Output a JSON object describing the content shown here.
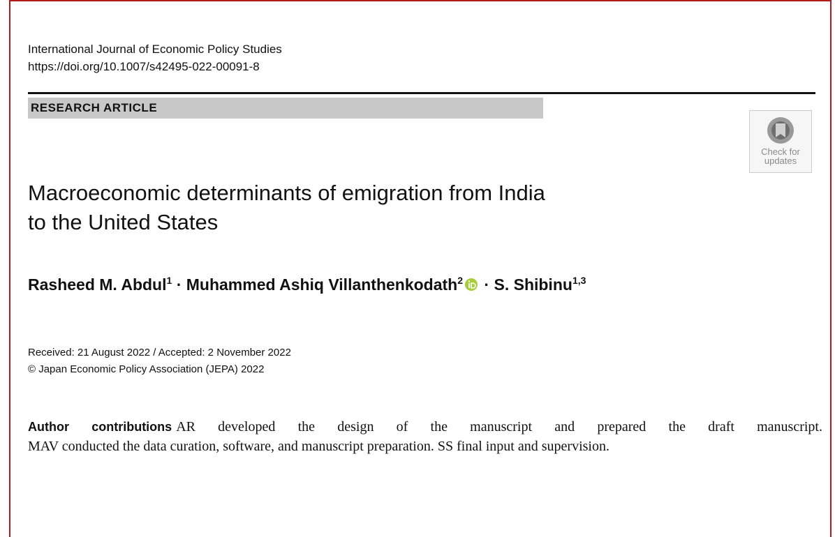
{
  "header": {
    "journal": "International Journal of Economic Policy Studies",
    "doi": "https://doi.org/10.1007/s42495-022-00091-8",
    "article_type": "RESEARCH ARTICLE",
    "check_badge": [
      "Check for",
      "updates"
    ]
  },
  "title": [
    "Macroeconomic determinants of emigration from India",
    "to the United States"
  ],
  "authors": {
    "separator": "·",
    "list": [
      {
        "name": "Rasheed M. Abdul",
        "affiliation": "1"
      },
      {
        "name": "Muhammed Ashiq Villanthenkodath",
        "affiliation": "2"
      },
      {
        "name": "S. Shibinu",
        "affiliation": "1,3"
      }
    ]
  },
  "dates": "Received: 21 August 2022 / Accepted: 2 November 2022",
  "copyright": "© Japan Economic Policy Association (JEPA) 2022",
  "contributions": {
    "heading": "Author contributions",
    "lines": [
      "AR developed the design of the manuscript and prepared the draft manuscript.",
      "MAV conducted the data curation, software, and manuscript preparation. SS final input and supervision."
    ]
  }
}
